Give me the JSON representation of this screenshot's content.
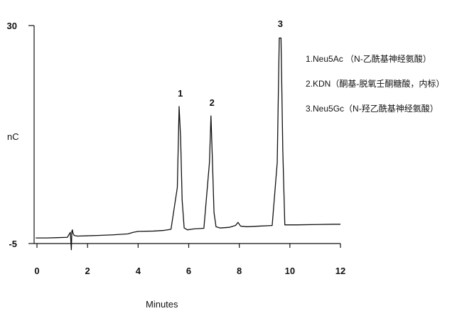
{
  "chart_data": {
    "type": "line",
    "title": "",
    "xlabel": "Minutes",
    "ylabel": "nC",
    "xlim": [
      0,
      12
    ],
    "ylim": [
      -5,
      30
    ],
    "x_ticks": [
      0,
      2,
      4,
      6,
      8,
      10,
      12
    ],
    "y_ticks": [
      -5,
      30
    ],
    "grid": false,
    "legend_position": "top-right",
    "series": [
      {
        "x": [
          -0.05,
          0.4,
          0.8,
          1.2,
          1.32,
          1.36,
          1.38,
          1.4,
          1.43,
          1.47,
          1.6,
          2.0,
          2.4,
          3.0,
          3.6,
          3.8,
          4.0,
          4.6,
          5.0,
          5.3,
          5.55,
          5.62,
          5.68,
          5.74,
          5.82,
          5.95,
          6.2,
          6.6,
          6.82,
          6.88,
          6.94,
          7.0,
          7.08,
          7.25,
          7.6,
          7.85,
          7.95,
          8.05,
          8.3,
          8.8,
          9.3,
          9.5,
          9.58,
          9.65,
          9.72,
          9.8,
          9.95,
          10.3,
          11.0,
          11.7,
          12.0
        ],
        "y": [
          -4.1,
          -4.1,
          -4.05,
          -4.0,
          -3.2,
          -6.0,
          -3.0,
          -2.8,
          -3.4,
          -3.7,
          -3.8,
          -3.75,
          -3.7,
          -3.6,
          -3.45,
          -3.2,
          -3.05,
          -3.0,
          -2.9,
          -2.7,
          4.0,
          17.0,
          12.0,
          2.0,
          -2.5,
          -2.8,
          -2.65,
          -2.55,
          8.0,
          15.5,
          8.0,
          0.0,
          -2.3,
          -2.5,
          -2.4,
          -2.1,
          -1.6,
          -2.2,
          -2.3,
          -2.2,
          -2.1,
          8.0,
          28.0,
          28.0,
          10.0,
          -2.0,
          -2.0,
          -2.0,
          -1.95,
          -1.9,
          -1.9
        ]
      }
    ],
    "peaks": [
      {
        "label": "1",
        "x": 5.67,
        "y": 17.0
      },
      {
        "label": "2",
        "x": 6.92,
        "y": 15.5
      },
      {
        "label": "3",
        "x": 9.62,
        "y": 28.2
      }
    ],
    "legend": [
      "1.Neu5Ac （N-乙酰基神经氨酸）",
      "2.KDN（酮基-脱氧壬酮糖酸，内标）",
      "3.Neu5Gc（N-羟乙酰基神经氨酸）"
    ],
    "colors": {
      "line": "#111111",
      "axis": "#111111"
    }
  }
}
